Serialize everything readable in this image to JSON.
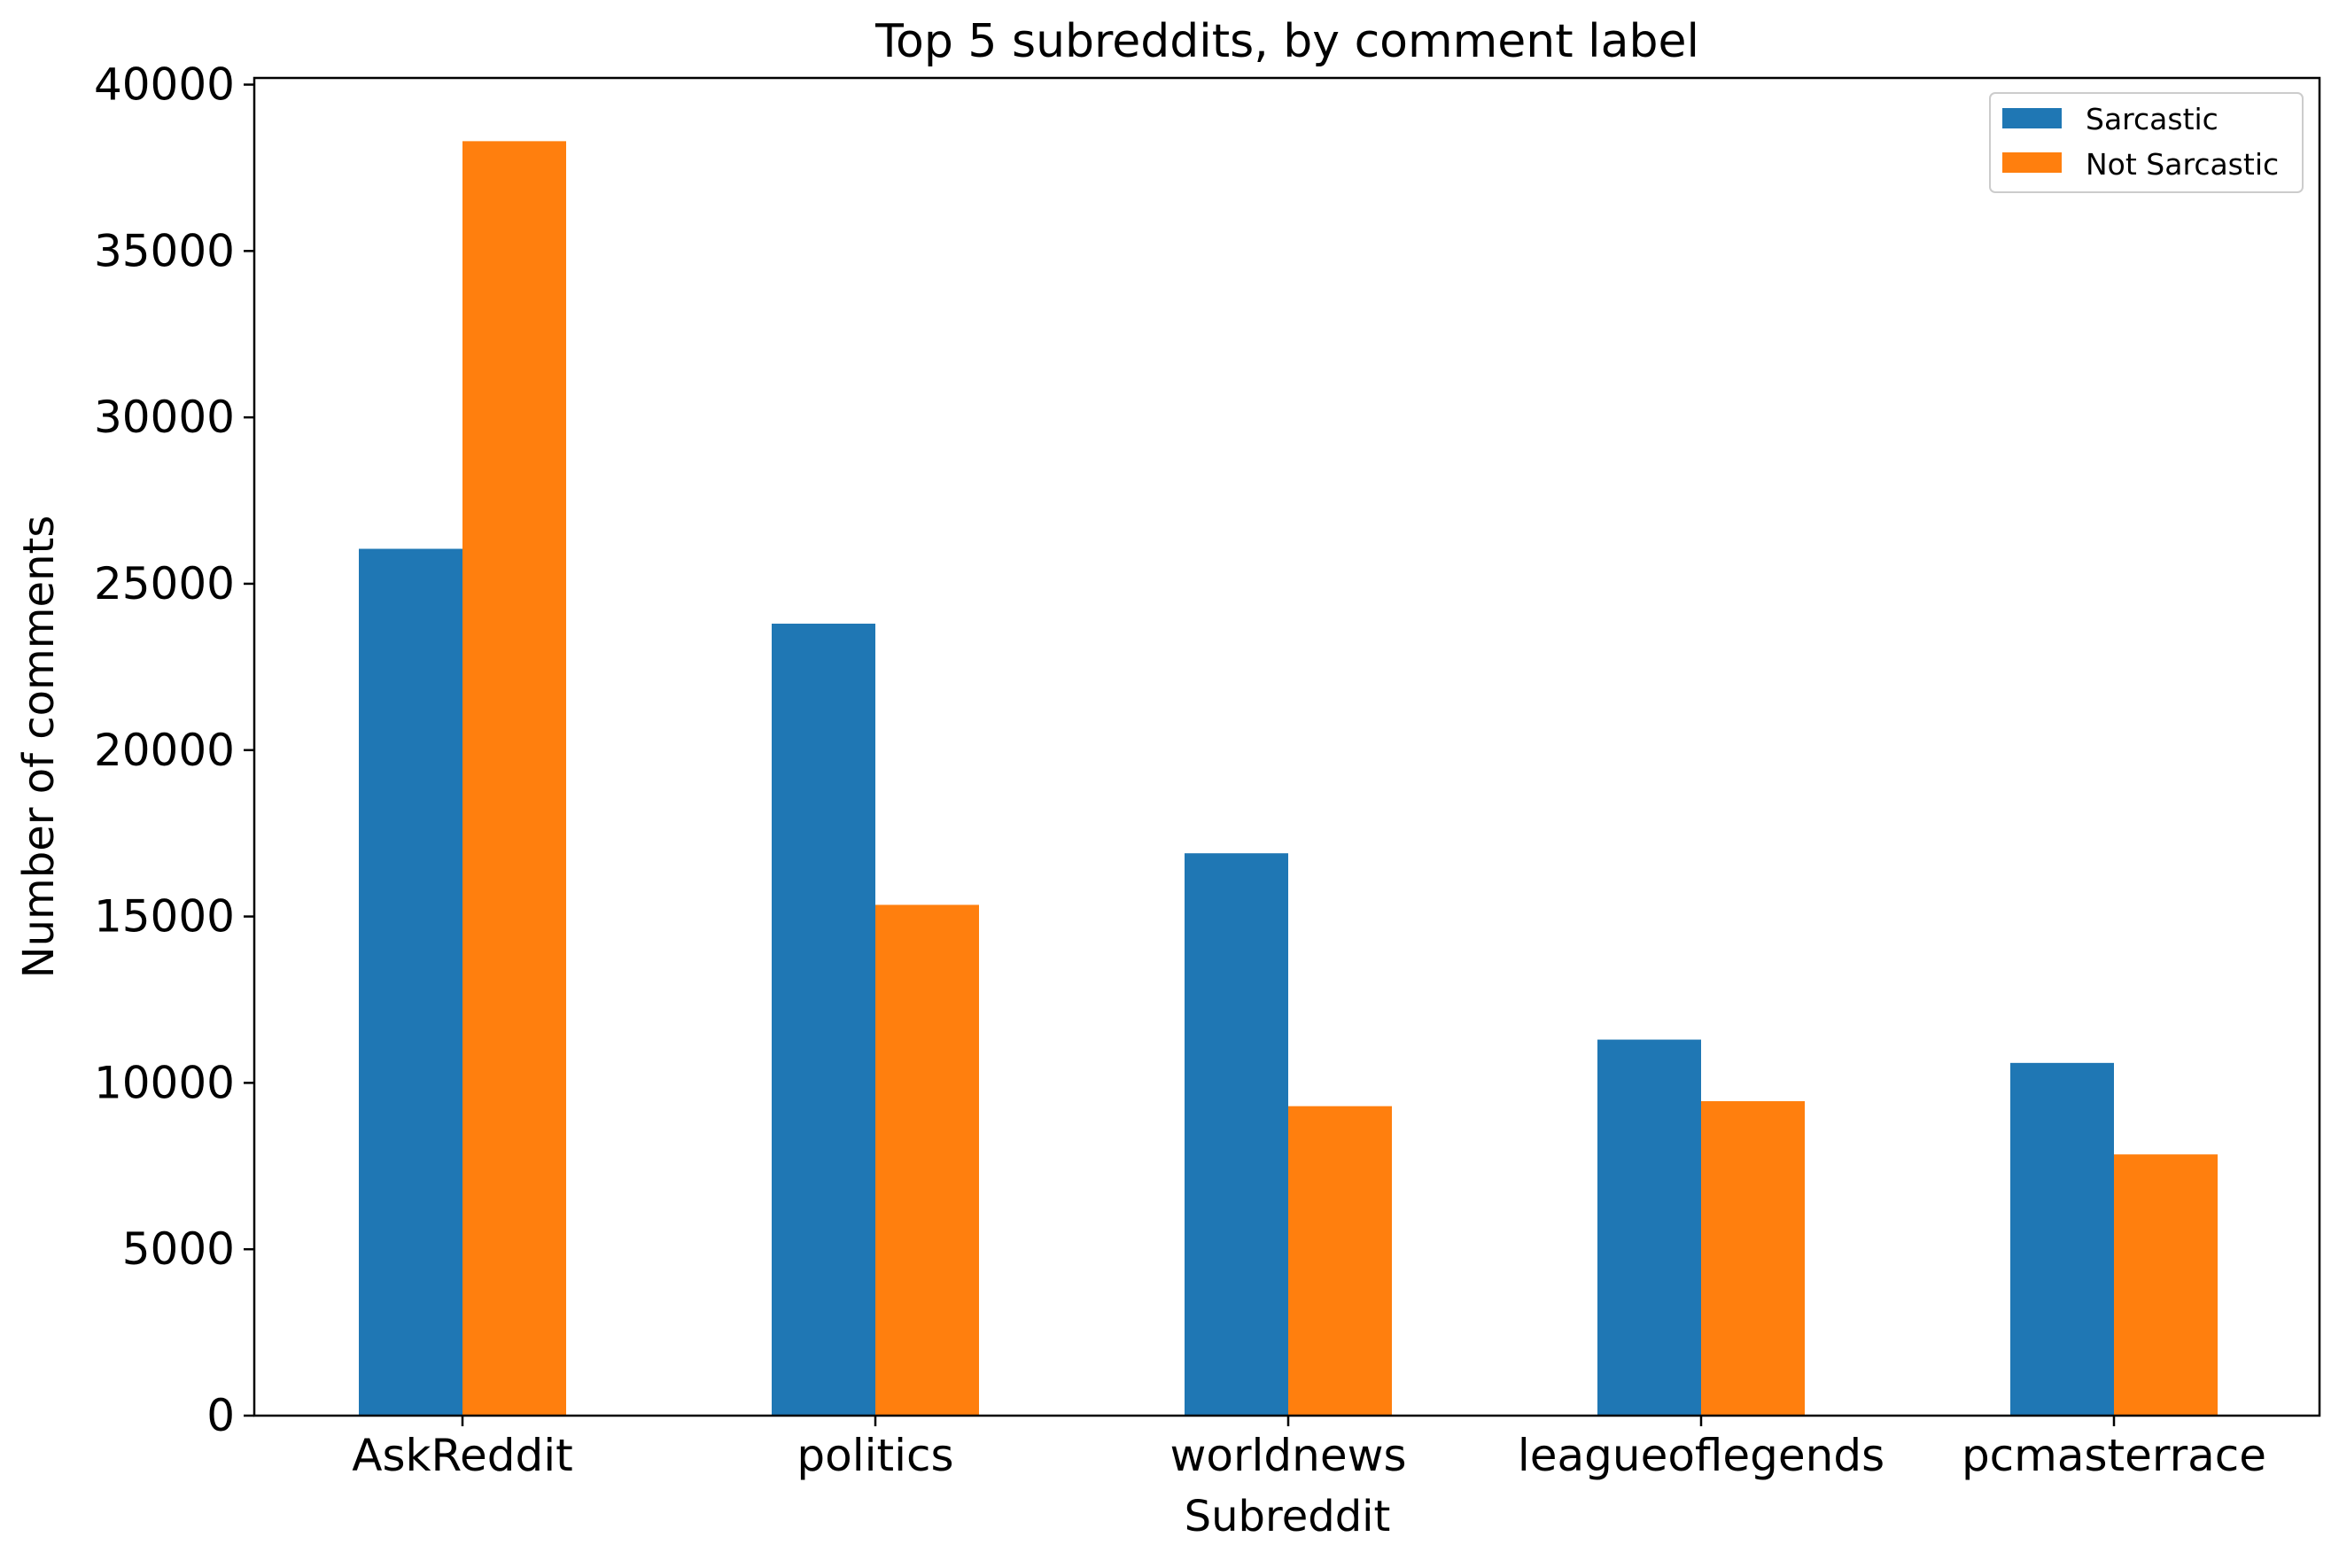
{
  "chart_data": {
    "type": "bar",
    "title": "Top 5 subreddits, by comment label",
    "xlabel": "Subreddit",
    "ylabel": "Number of comments",
    "categories": [
      "AskReddit",
      "politics",
      "worldnews",
      "leagueoflegends",
      "pcmasterrace"
    ],
    "series": [
      {
        "name": "Sarcastic",
        "color": "#1f77b4",
        "values": [
          26050,
          23800,
          16900,
          11300,
          10600
        ]
      },
      {
        "name": "Not Sarcastic",
        "color": "#ff7f0e",
        "values": [
          38300,
          15350,
          9300,
          9450,
          7850
        ]
      }
    ],
    "ylim": [
      0,
      40200
    ],
    "yticks": [
      0,
      5000,
      10000,
      15000,
      20000,
      25000,
      30000,
      35000,
      40000
    ],
    "ytick_labels": [
      "0",
      "5000",
      "10000",
      "15000",
      "20000",
      "25000",
      "30000",
      "35000",
      "40000"
    ],
    "grid": false,
    "legend_position": "upper right"
  }
}
